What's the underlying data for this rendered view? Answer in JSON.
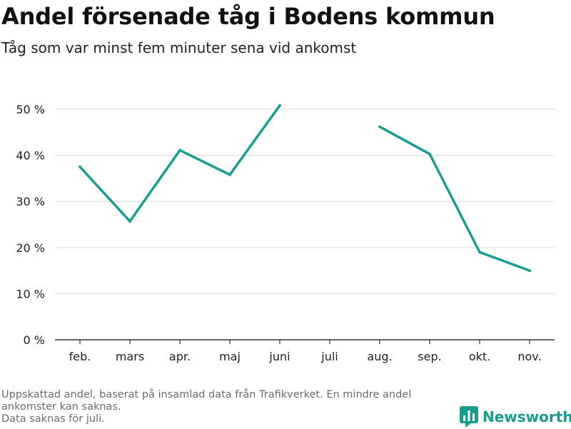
{
  "title": "Andel försenade tåg i Bodens kommun",
  "subtitle": "Tåg som var minst fem minuter sena vid ankomst",
  "notes": [
    "Uppskattad andel, baserat på insamlad data från Trafikverket. En mindre andel ankomster kan saknas.",
    "Data saknas för juli."
  ],
  "brand": {
    "name": "Newsworthy",
    "color": "#1a9c8c",
    "icon": "newsworthy-bar-chart-icon"
  },
  "colors": {
    "line": "#1a9e91",
    "grid": "#dddddd",
    "axis": "#333333"
  },
  "chart_data": {
    "type": "line",
    "title": "Andel försenade tåg i Bodens kommun",
    "subtitle": "Tåg som var minst fem minuter sena vid ankomst",
    "categories": [
      "feb.",
      "mars",
      "apr.",
      "maj",
      "juni",
      "juli",
      "aug.",
      "sep.",
      "okt.",
      "nov."
    ],
    "series": [
      {
        "values": [
          37.5,
          25.7,
          41.1,
          35.8,
          50.8,
          null,
          46.2,
          40.3,
          19.0,
          15.0
        ]
      }
    ],
    "ylim": [
      0,
      50
    ],
    "yticks": [
      0,
      10,
      20,
      30,
      40,
      50
    ],
    "ytick_labels": [
      "0 %",
      "10 %",
      "20 %",
      "30 %",
      "40 %",
      "50 %"
    ],
    "grid": true,
    "legend": "none"
  }
}
